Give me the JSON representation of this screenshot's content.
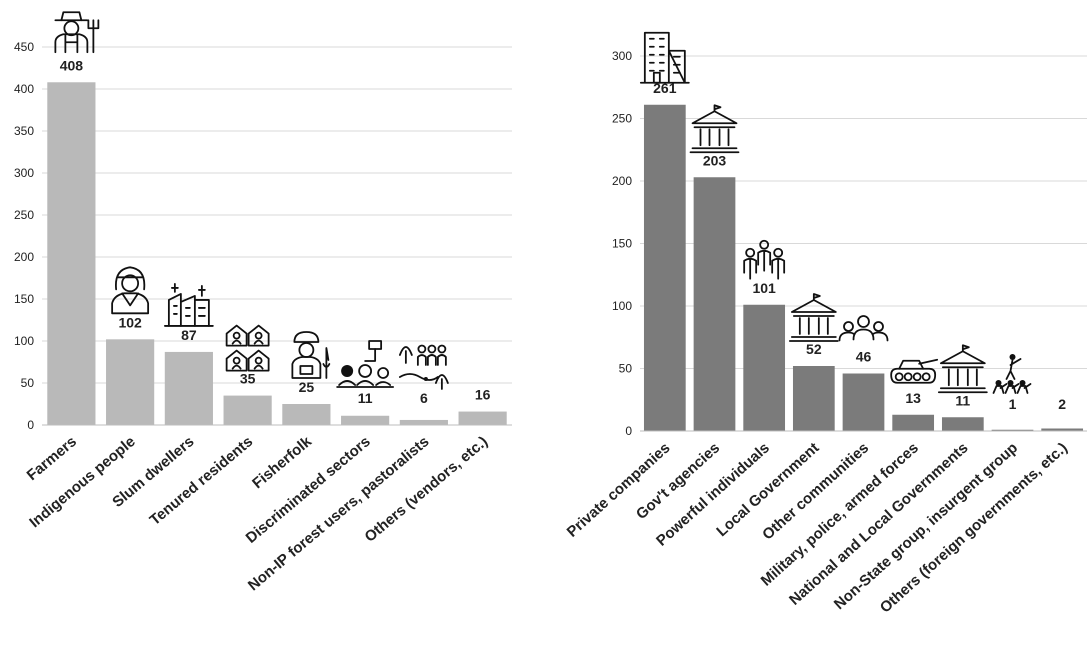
{
  "chart_data": [
    {
      "type": "bar",
      "title": "",
      "xlabel": "",
      "ylabel": "",
      "ylim": [
        0,
        450
      ],
      "yticks": [
        0,
        50,
        100,
        150,
        200,
        250,
        300,
        350,
        400,
        450
      ],
      "grid": "horizontal",
      "bar_color": "#b9b9b9",
      "categories": [
        "Farmers",
        "Indigenous people",
        "Slum dwellers",
        "Tenured residents",
        "Fisherfolk",
        "Discriminated sectors",
        "Non-IP forest users, pastoralists",
        "Others (vendors, etc.)"
      ],
      "values": [
        408,
        102,
        87,
        35,
        25,
        11,
        6,
        16
      ],
      "value_labels": [
        "408",
        "102",
        "87",
        "35",
        "25",
        "11",
        "6",
        "16"
      ],
      "icons": [
        "farmer-icon",
        "indigenous-woman-icon",
        "slum-buildings-icon",
        "tenured-houses-icon",
        "fisherman-icon",
        "discriminated-sectors-icon",
        "forest-users-icon",
        ""
      ]
    },
    {
      "type": "bar",
      "title": "",
      "xlabel": "",
      "ylabel": "",
      "ylim": [
        0,
        300
      ],
      "yticks": [
        0,
        50,
        100,
        150,
        200,
        250,
        300
      ],
      "grid": "horizontal",
      "bar_color": "#7b7b7b",
      "categories": [
        "Private companies",
        "Gov't agencies",
        "Powerful individuals",
        "Local Government",
        "Other communities",
        "Military, police, armed forces",
        "National and Local Governments",
        "Non-State group, insurgent group",
        "Others (foreign governments, etc.)"
      ],
      "values": [
        261,
        203,
        101,
        52,
        46,
        13,
        11,
        1,
        2
      ],
      "value_labels": [
        "261",
        "203",
        "101",
        "52",
        "46",
        "13",
        "11",
        "1",
        "2"
      ],
      "icons": [
        "office-buildings-icon",
        "government-building-icon",
        "business-people-icon",
        "government-building-icon",
        "community-people-icon",
        "tank-icon",
        "government-building-icon",
        "armed-group-icon",
        ""
      ]
    }
  ]
}
